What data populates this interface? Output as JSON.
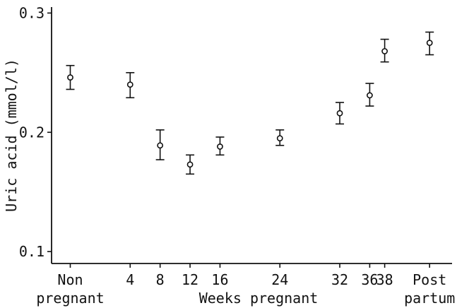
{
  "chart_data": {
    "type": "scatter",
    "title": "",
    "xlabel": "Weeks pregnant",
    "ylabel": "Uric acid (mmol/l)",
    "ylim": [
      0.09,
      0.305
    ],
    "y_ticks": [
      "0.1",
      "0.2",
      "0.3"
    ],
    "y_tick_values": [
      0.1,
      0.2,
      0.3
    ],
    "x_ticks": [
      {
        "line1": "Non",
        "line2": "pregnant",
        "x": -4
      },
      {
        "line1": "4",
        "line2": "",
        "x": 4
      },
      {
        "line1": "8",
        "line2": "",
        "x": 8
      },
      {
        "line1": "12",
        "line2": "",
        "x": 12
      },
      {
        "line1": "16",
        "line2": "",
        "x": 16
      },
      {
        "line1": "24",
        "line2": "",
        "x": 24
      },
      {
        "line1": "32",
        "line2": "",
        "x": 32
      },
      {
        "line1": "36",
        "line2": "",
        "x": 36
      },
      {
        "line1": "38",
        "line2": "",
        "x": 38
      },
      {
        "line1": "Post",
        "line2": "partum",
        "x": 44
      }
    ],
    "xlim": [
      -6.5,
      47
    ],
    "points": [
      {
        "label": "Non pregnant",
        "x": -4,
        "y": 0.246,
        "err_low": 0.236,
        "err_high": 0.256
      },
      {
        "label": "4",
        "x": 4,
        "y": 0.24,
        "err_low": 0.229,
        "err_high": 0.25
      },
      {
        "label": "8",
        "x": 8,
        "y": 0.189,
        "err_low": 0.177,
        "err_high": 0.202
      },
      {
        "label": "12",
        "x": 12,
        "y": 0.173,
        "err_low": 0.165,
        "err_high": 0.181
      },
      {
        "label": "16",
        "x": 16,
        "y": 0.188,
        "err_low": 0.181,
        "err_high": 0.196
      },
      {
        "label": "24",
        "x": 24,
        "y": 0.195,
        "err_low": 0.189,
        "err_high": 0.202
      },
      {
        "label": "32",
        "x": 32,
        "y": 0.216,
        "err_low": 0.207,
        "err_high": 0.225
      },
      {
        "label": "36",
        "x": 36,
        "y": 0.231,
        "err_low": 0.222,
        "err_high": 0.241
      },
      {
        "label": "38",
        "x": 38,
        "y": 0.268,
        "err_low": 0.259,
        "err_high": 0.278
      },
      {
        "label": "Post partum",
        "x": 44,
        "y": 0.275,
        "err_low": 0.265,
        "err_high": 0.284
      }
    ],
    "grid": false,
    "legend": "none"
  }
}
